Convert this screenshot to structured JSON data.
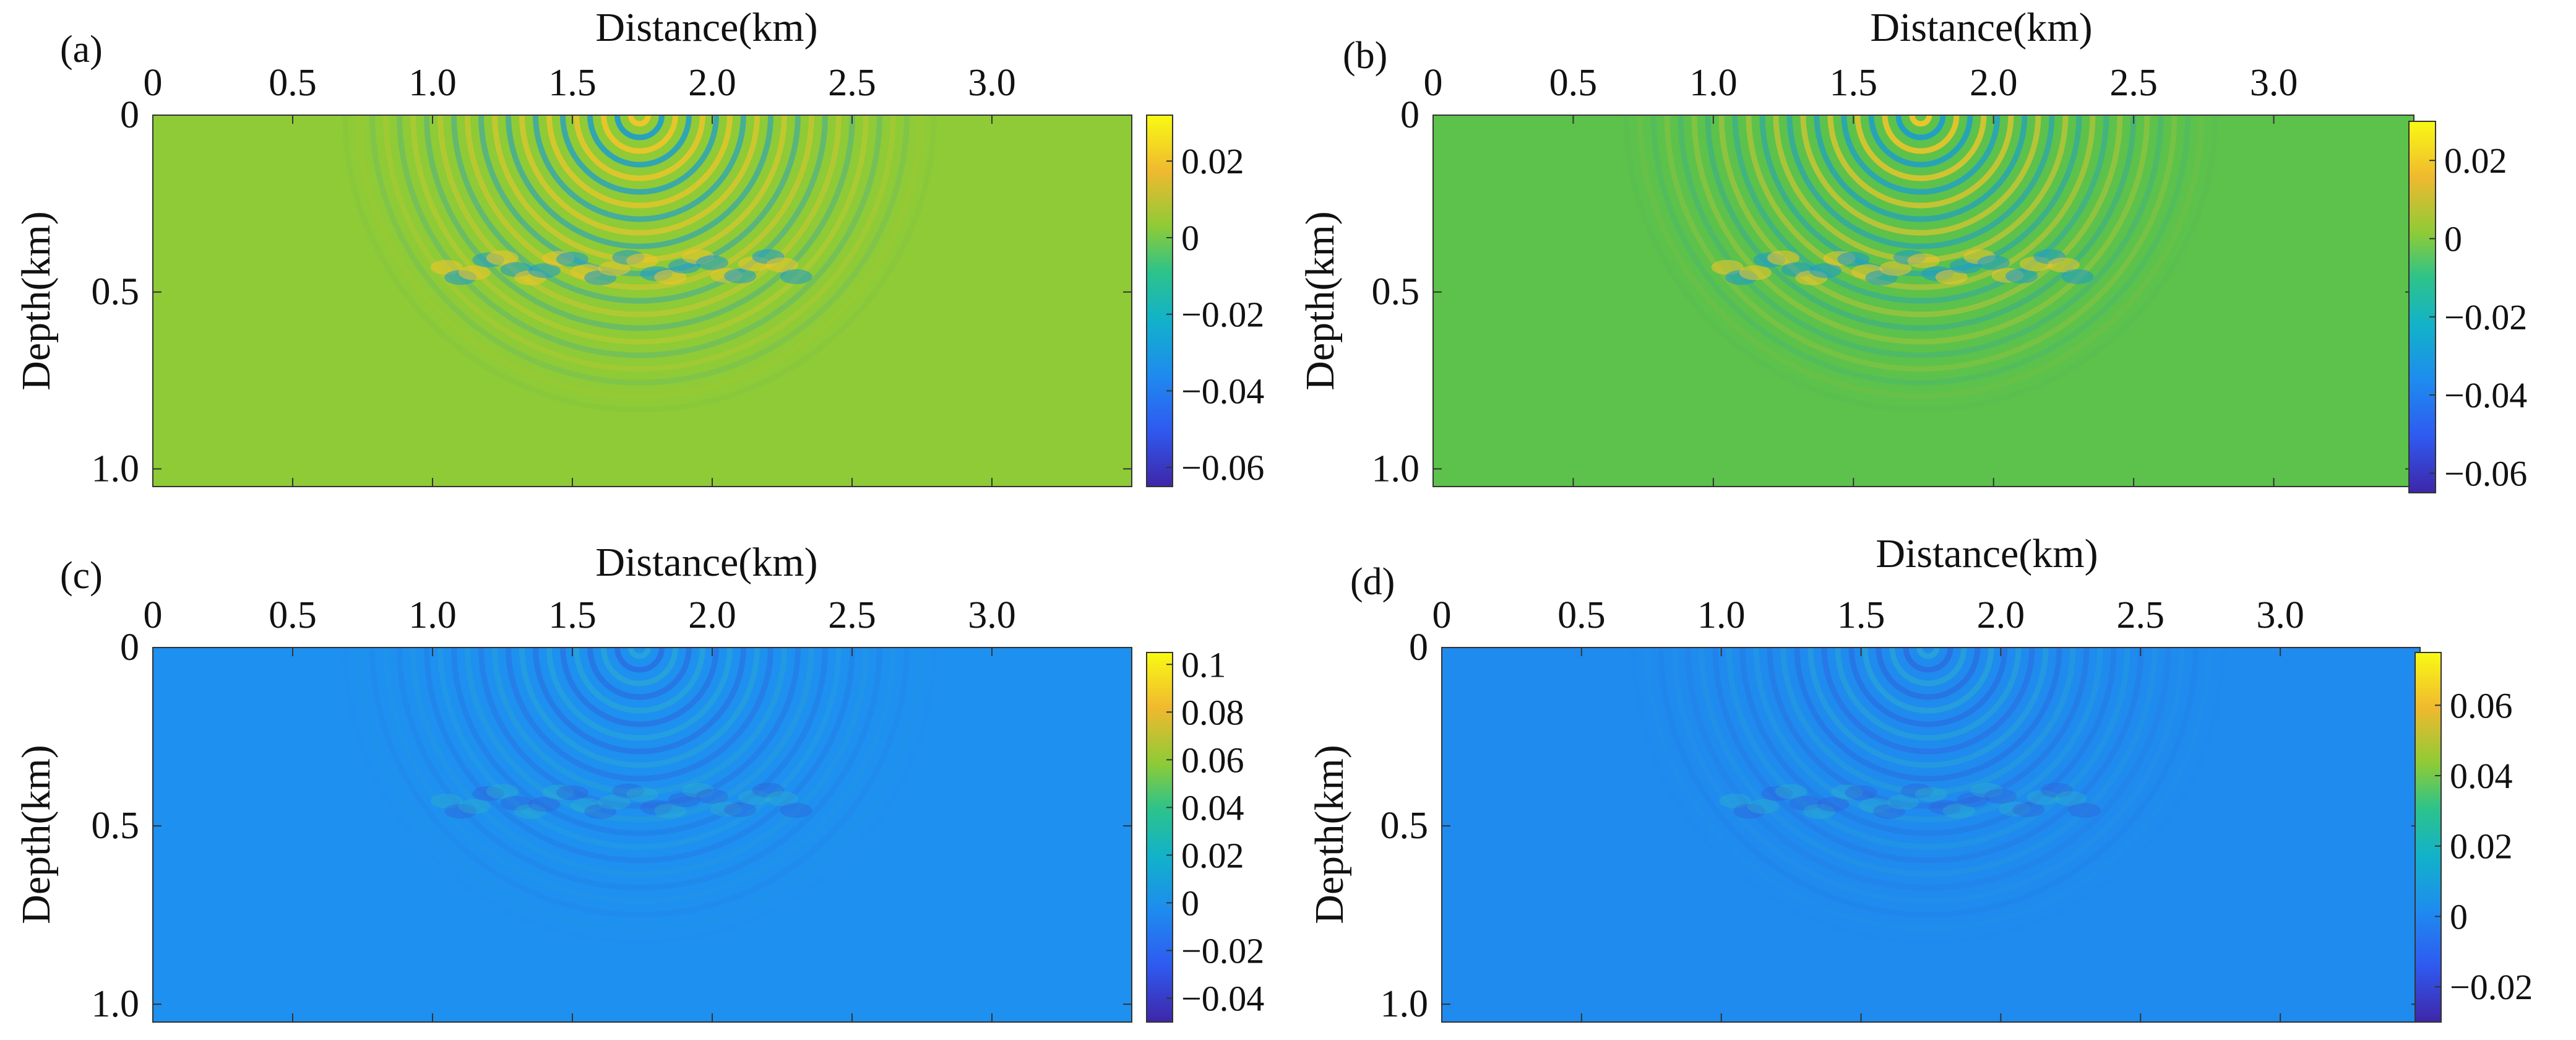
{
  "figure": {
    "x_axis_title": "Distance(km)",
    "y_axis_title": "Depth(km)"
  },
  "chart_data": [
    {
      "type": "heatmap",
      "panel_label": "(a)",
      "title": "",
      "xlabel": "Distance(km)",
      "ylabel": "Depth(km)",
      "x_ticks": [
        "0",
        "0.5",
        "1.0",
        "1.5",
        "2.0",
        "2.5",
        "3.0"
      ],
      "x_tick_values": [
        0,
        0.5,
        1.0,
        1.5,
        2.0,
        2.5,
        3.0
      ],
      "y_ticks": [
        "0",
        "0.5",
        "1.0"
      ],
      "y_tick_values": [
        0,
        0.5,
        1.0
      ],
      "xlim": [
        0,
        3.5
      ],
      "ylim": [
        0,
        1.05
      ],
      "colorbar": {
        "ticks": [
          "0.02",
          "0",
          "−0.02",
          "−0.04",
          "−0.06"
        ],
        "tick_values": [
          0.02,
          0,
          -0.02,
          -0.04,
          -0.06
        ],
        "range": [
          -0.065,
          0.032
        ]
      },
      "source": {
        "x": 1.74,
        "z": 0.0
      },
      "colors": {
        "background": "#8ecb36"
      }
    },
    {
      "type": "heatmap",
      "panel_label": "(b)",
      "title": "",
      "xlabel": "Distance(km)",
      "ylabel": "Depth(km)",
      "x_ticks": [
        "0",
        "0.5",
        "1.0",
        "1.5",
        "2.0",
        "2.5",
        "3.0"
      ],
      "x_tick_values": [
        0,
        0.5,
        1.0,
        1.5,
        2.0,
        2.5,
        3.0
      ],
      "y_ticks": [
        "0",
        "0.5",
        "1.0"
      ],
      "y_tick_values": [
        0,
        0.5,
        1.0
      ],
      "xlim": [
        0,
        3.5
      ],
      "ylim": [
        0,
        1.05
      ],
      "colorbar": {
        "ticks": [
          "0.02",
          "0",
          "−0.02",
          "−0.04",
          "−0.06"
        ],
        "tick_values": [
          0.02,
          0,
          -0.02,
          -0.04,
          -0.06
        ],
        "range": [
          -0.065,
          0.03
        ]
      },
      "source": {
        "x": 1.74,
        "z": 0.0
      },
      "colors": {
        "background": "#5cc24b"
      }
    },
    {
      "type": "heatmap",
      "panel_label": "(c)",
      "title": "",
      "xlabel": "Distance(km)",
      "ylabel": "Depth(km)",
      "x_ticks": [
        "0",
        "0.5",
        "1.0",
        "1.5",
        "2.0",
        "2.5",
        "3.0"
      ],
      "x_tick_values": [
        0,
        0.5,
        1.0,
        1.5,
        2.0,
        2.5,
        3.0
      ],
      "y_ticks": [
        "0",
        "0.5",
        "1.0"
      ],
      "y_tick_values": [
        0,
        0.5,
        1.0
      ],
      "xlim": [
        0,
        3.5
      ],
      "ylim": [
        0,
        1.05
      ],
      "colorbar": {
        "ticks": [
          "0.1",
          "0.08",
          "0.06",
          "0.04",
          "0.02",
          "0",
          "−0.02",
          "−0.04"
        ],
        "tick_values": [
          0.1,
          0.08,
          0.06,
          0.04,
          0.02,
          0,
          -0.02,
          -0.04
        ],
        "range": [
          -0.05,
          0.105
        ]
      },
      "source": {
        "x": 1.74,
        "z": 0.0
      },
      "colors": {
        "background": "#1e90ef"
      }
    },
    {
      "type": "heatmap",
      "panel_label": "(d)",
      "title": "",
      "xlabel": "Distance(km)",
      "ylabel": "Depth(km)",
      "x_ticks": [
        "0",
        "0.5",
        "1.0",
        "1.5",
        "2.0",
        "2.5",
        "3.0"
      ],
      "x_tick_values": [
        0,
        0.5,
        1.0,
        1.5,
        2.0,
        2.5,
        3.0
      ],
      "y_ticks": [
        "0",
        "0.5",
        "1.0"
      ],
      "y_tick_values": [
        0,
        0.5,
        1.0
      ],
      "xlim": [
        0,
        3.5
      ],
      "ylim": [
        0,
        1.05
      ],
      "colorbar": {
        "ticks": [
          "0.06",
          "0.04",
          "0.02",
          "0",
          "−0.02"
        ],
        "tick_values": [
          0.06,
          0.04,
          0.02,
          0,
          -0.02
        ],
        "range": [
          -0.03,
          0.075
        ]
      },
      "source": {
        "x": 1.74,
        "z": 0.0
      },
      "colors": {
        "background": "#1f8bee"
      }
    }
  ]
}
